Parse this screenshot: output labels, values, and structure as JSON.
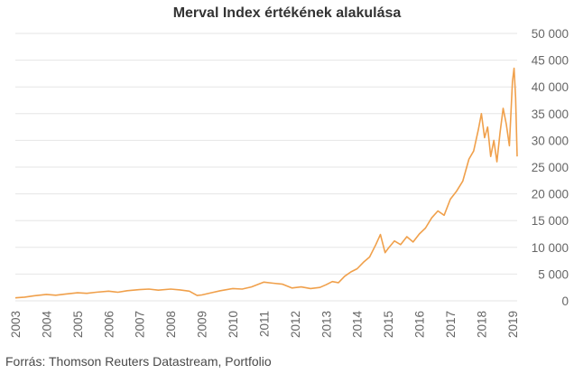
{
  "chart_data": {
    "type": "line",
    "title": "Merval Index értékének alakulása",
    "source": "Forrás: Thomson Reuters Datastream, Portfolio",
    "line_color": "#f0a04b",
    "grid_color": "#e6e6e6",
    "grid": true,
    "y_axis_side": "right",
    "xlim": [
      2003,
      2019.15
    ],
    "ylim": [
      0,
      50000
    ],
    "x_ticks": [
      2003,
      2004,
      2005,
      2006,
      2007,
      2008,
      2009,
      2010,
      2011,
      2012,
      2013,
      2014,
      2015,
      2016,
      2017,
      2018,
      2019
    ],
    "x_tick_labels": [
      "2003",
      "2004",
      "2005",
      "2006",
      "2007",
      "2008",
      "2009",
      "2010",
      "2011",
      "2012",
      "2013",
      "2014",
      "2015",
      "2016",
      "2017",
      "2018",
      "2019"
    ],
    "y_ticks": [
      0,
      5000,
      10000,
      15000,
      20000,
      25000,
      30000,
      35000,
      40000,
      45000,
      50000
    ],
    "y_tick_labels": [
      "0",
      "5 000",
      "10 000",
      "15 000",
      "20 000",
      "25 000",
      "30 000",
      "35 000",
      "40 000",
      "45 000",
      "50 000"
    ],
    "series": [
      {
        "x": [
          2003.0,
          2003.3,
          2003.6,
          2004.0,
          2004.3,
          2004.6,
          2005.0,
          2005.3,
          2005.6,
          2006.0,
          2006.3,
          2006.6,
          2007.0,
          2007.3,
          2007.6,
          2008.0,
          2008.3,
          2008.6,
          2008.85,
          2009.0,
          2009.3,
          2009.6,
          2010.0,
          2010.3,
          2010.6,
          2011.0,
          2011.3,
          2011.6,
          2011.9,
          2012.2,
          2012.5,
          2012.8,
          2013.0,
          2013.2,
          2013.4,
          2013.6,
          2013.8,
          2014.0,
          2014.2,
          2014.4,
          2014.6,
          2014.75,
          2014.9,
          2015.0,
          2015.2,
          2015.4,
          2015.6,
          2015.8,
          2016.0,
          2016.2,
          2016.4,
          2016.6,
          2016.8,
          2017.0,
          2017.2,
          2017.4,
          2017.6,
          2017.75,
          2017.9,
          2018.0,
          2018.1,
          2018.2,
          2018.3,
          2018.4,
          2018.5,
          2018.6,
          2018.7,
          2018.8,
          2018.9,
          2019.0,
          2019.05,
          2019.1,
          2019.15
        ],
        "y": [
          550,
          700,
          950,
          1200,
          1050,
          1250,
          1500,
          1400,
          1600,
          1800,
          1600,
          1900,
          2100,
          2200,
          2000,
          2200,
          2050,
          1800,
          1000,
          1100,
          1500,
          1900,
          2300,
          2200,
          2600,
          3500,
          3300,
          3100,
          2400,
          2600,
          2300,
          2500,
          3000,
          3600,
          3400,
          4600,
          5400,
          6000,
          7200,
          8200,
          10500,
          12400,
          9000,
          9800,
          11200,
          10500,
          12000,
          11000,
          12500,
          13600,
          15500,
          16800,
          16000,
          19000,
          20500,
          22400,
          26500,
          28000,
          32000,
          35000,
          30500,
          32500,
          27000,
          30000,
          26000,
          31500,
          36000,
          33000,
          29000,
          41000,
          43500,
          38000,
          27000
        ]
      }
    ]
  }
}
